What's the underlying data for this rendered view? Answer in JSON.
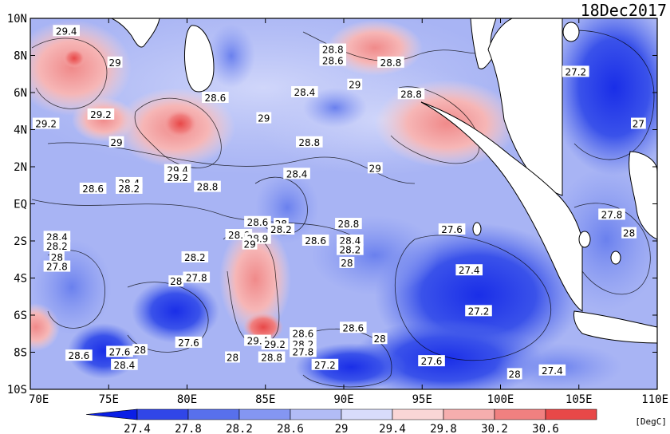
{
  "title": "18Dec2017",
  "unit": "[DegC]",
  "lat_labels": [
    "10N",
    "8N",
    "6N",
    "4N",
    "2N",
    "EQ",
    "2S",
    "4S",
    "6S",
    "8S",
    "10S"
  ],
  "lon_labels": [
    "70E",
    "75E",
    "80E",
    "85E",
    "90E",
    "95E",
    "100E",
    "105E",
    "110E"
  ],
  "colorbar": {
    "ticks": [
      "27.4",
      "27.8",
      "28.2",
      "28.6",
      "29",
      "29.4",
      "29.8",
      "30.2",
      "30.6"
    ],
    "colors": [
      "#0a1ee6",
      "#3046e8",
      "#5870ec",
      "#8496f2",
      "#b2bcf6",
      "#d8dcfb",
      "#fad6d6",
      "#f6aeae",
      "#f08080",
      "#e84848",
      "#e21818"
    ]
  },
  "contour_labels": [
    {
      "text": "29.4",
      "lon": 72.3,
      "lat": 9.3
    },
    {
      "text": "29",
      "lon": 75.4,
      "lat": 7.6
    },
    {
      "text": "28.8",
      "lon": 89.3,
      "lat": 8.3
    },
    {
      "text": "28.6",
      "lon": 89.3,
      "lat": 7.7
    },
    {
      "text": "28.8",
      "lon": 93.0,
      "lat": 7.6
    },
    {
      "text": "29",
      "lon": 90.7,
      "lat": 6.4
    },
    {
      "text": "27.2",
      "lon": 104.8,
      "lat": 7.1
    },
    {
      "text": "28.4",
      "lon": 87.5,
      "lat": 6.0
    },
    {
      "text": "28.6",
      "lon": 81.8,
      "lat": 5.7
    },
    {
      "text": "28.8",
      "lon": 94.3,
      "lat": 5.9
    },
    {
      "text": "29.2",
      "lon": 71.0,
      "lat": 4.3
    },
    {
      "text": "29.2",
      "lon": 74.5,
      "lat": 4.8
    },
    {
      "text": "29",
      "lon": 84.9,
      "lat": 4.6
    },
    {
      "text": "27",
      "lon": 108.8,
      "lat": 4.3
    },
    {
      "text": "29",
      "lon": 75.5,
      "lat": 3.3
    },
    {
      "text": "28.8",
      "lon": 87.8,
      "lat": 3.3
    },
    {
      "text": "29.4",
      "lon": 79.4,
      "lat": 1.8
    },
    {
      "text": "29.2",
      "lon": 79.4,
      "lat": 1.4
    },
    {
      "text": "28.4",
      "lon": 87.0,
      "lat": 1.6
    },
    {
      "text": "29",
      "lon": 92.0,
      "lat": 1.9
    },
    {
      "text": "28.6",
      "lon": 74.0,
      "lat": 0.8
    },
    {
      "text": "28.4",
      "lon": 76.3,
      "lat": 1.1
    },
    {
      "text": "28.2",
      "lon": 76.3,
      "lat": 0.8
    },
    {
      "text": "28.8",
      "lon": 81.3,
      "lat": 0.9
    },
    {
      "text": "28.6",
      "lon": 84.5,
      "lat": -1.0
    },
    {
      "text": "28",
      "lon": 86.0,
      "lat": -1.1
    },
    {
      "text": "28.2",
      "lon": 86.0,
      "lat": -1.4
    },
    {
      "text": "28.8",
      "lon": 90.3,
      "lat": -1.1
    },
    {
      "text": "27.8",
      "lon": 107.1,
      "lat": -0.6
    },
    {
      "text": "28.4",
      "lon": 71.7,
      "lat": -1.8
    },
    {
      "text": "28.2",
      "lon": 71.7,
      "lat": -2.3
    },
    {
      "text": "28.6",
      "lon": 83.3,
      "lat": -1.7
    },
    {
      "text": "28.9",
      "lon": 84.5,
      "lat": -1.9
    },
    {
      "text": "29",
      "lon": 84.0,
      "lat": -2.2
    },
    {
      "text": "28.6",
      "lon": 88.2,
      "lat": -2.0
    },
    {
      "text": "28.4",
      "lon": 90.4,
      "lat": -2.0
    },
    {
      "text": "28.2",
      "lon": 90.4,
      "lat": -2.5
    },
    {
      "text": "27.6",
      "lon": 96.9,
      "lat": -1.4
    },
    {
      "text": "28",
      "lon": 108.2,
      "lat": -1.6
    },
    {
      "text": "28",
      "lon": 71.7,
      "lat": -2.9
    },
    {
      "text": "27.8",
      "lon": 71.7,
      "lat": -3.4
    },
    {
      "text": "28.2",
      "lon": 80.5,
      "lat": -2.9
    },
    {
      "text": "28",
      "lon": 90.2,
      "lat": -3.2
    },
    {
      "text": "27.4",
      "lon": 98.0,
      "lat": -3.6
    },
    {
      "text": "28",
      "lon": 79.3,
      "lat": -4.2
    },
    {
      "text": "27.8",
      "lon": 80.6,
      "lat": -4.0
    },
    {
      "text": "27.2",
      "lon": 98.6,
      "lat": -5.8
    },
    {
      "text": "29.4",
      "lon": 84.5,
      "lat": -7.4
    },
    {
      "text": "29.2",
      "lon": 85.6,
      "lat": -7.6
    },
    {
      "text": "28.6",
      "lon": 87.4,
      "lat": -7.0
    },
    {
      "text": "28.2",
      "lon": 87.4,
      "lat": -7.6
    },
    {
      "text": "27.8",
      "lon": 87.4,
      "lat": -8.0
    },
    {
      "text": "28.8",
      "lon": 85.4,
      "lat": -8.3
    },
    {
      "text": "28.6",
      "lon": 90.6,
      "lat": -6.7
    },
    {
      "text": "27.6",
      "lon": 80.1,
      "lat": -7.5
    },
    {
      "text": "28",
      "lon": 92.3,
      "lat": -7.3
    },
    {
      "text": "28.6",
      "lon": 73.1,
      "lat": -8.2
    },
    {
      "text": "27.6",
      "lon": 75.7,
      "lat": -8.0
    },
    {
      "text": "28",
      "lon": 77.0,
      "lat": -7.9
    },
    {
      "text": "28.4",
      "lon": 76.0,
      "lat": -8.7
    },
    {
      "text": "28",
      "lon": 82.9,
      "lat": -8.3
    },
    {
      "text": "27.2",
      "lon": 88.8,
      "lat": -8.7
    },
    {
      "text": "27.6",
      "lon": 95.6,
      "lat": -8.5
    },
    {
      "text": "28",
      "lon": 100.9,
      "lat": -9.2
    },
    {
      "text": "27.4",
      "lon": 103.3,
      "lat": -9.0
    }
  ]
}
